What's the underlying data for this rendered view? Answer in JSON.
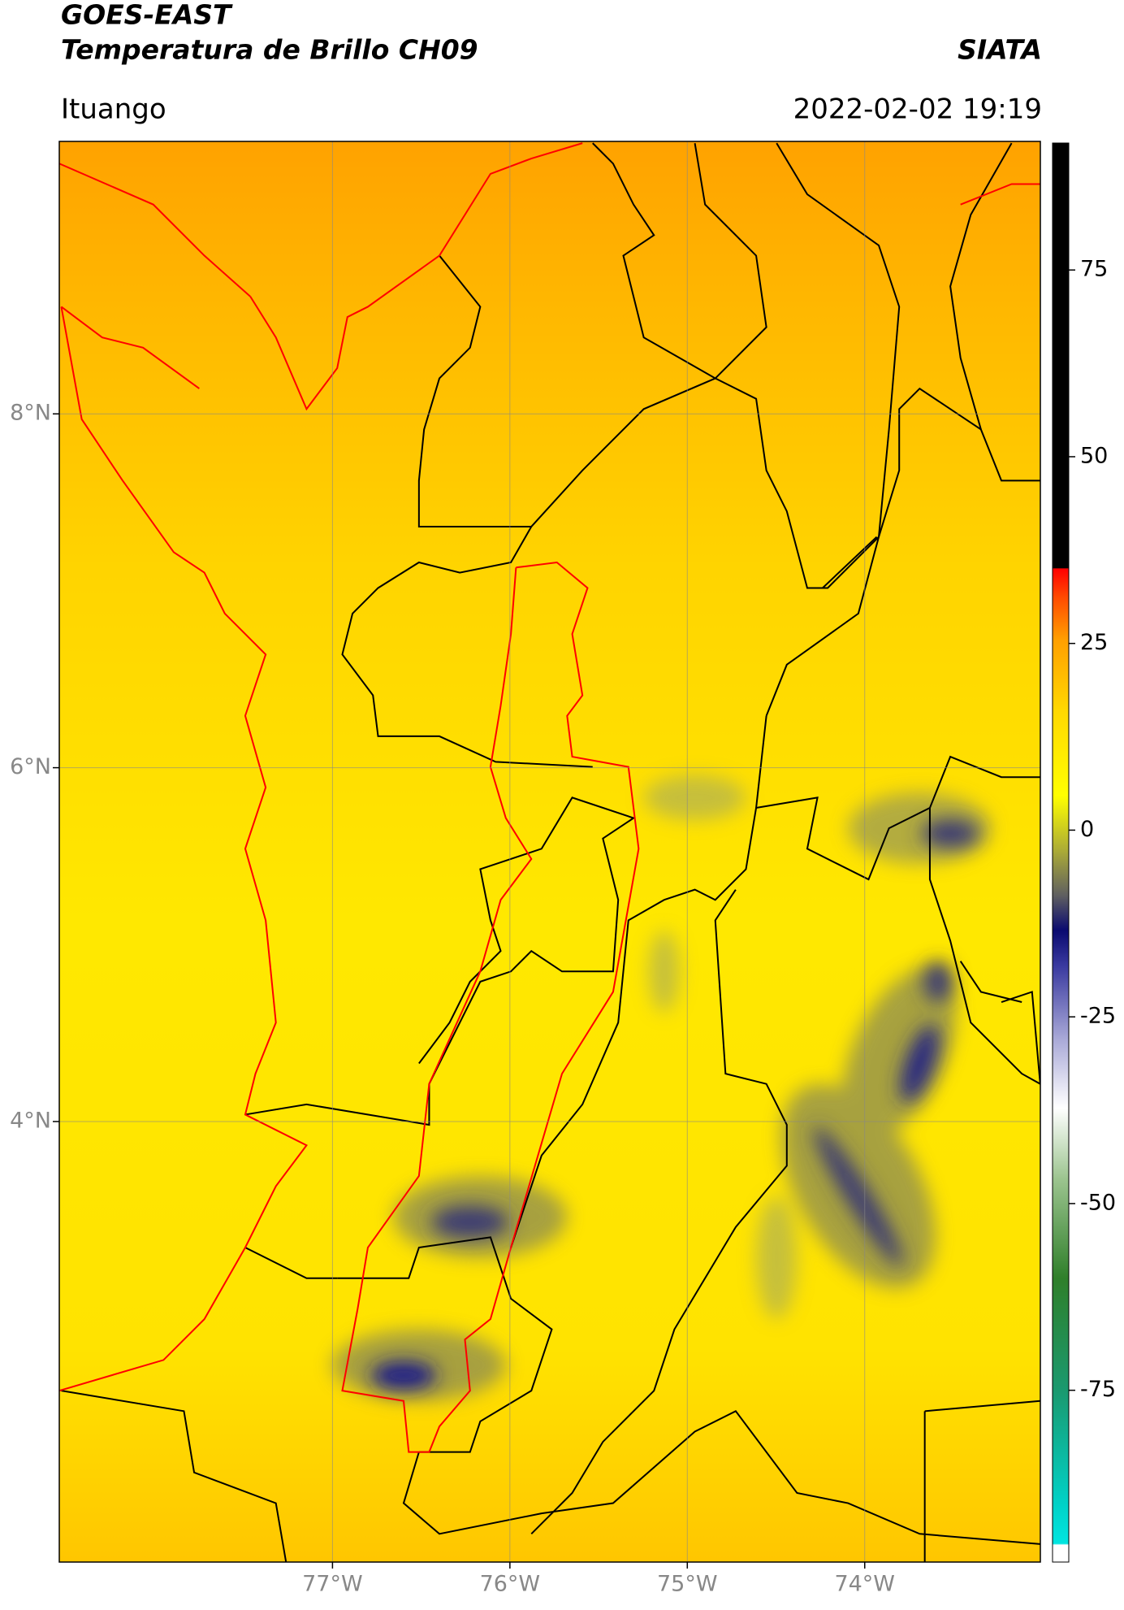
{
  "header": {
    "title": "GOES-EAST",
    "subtitle": "Temperatura de Brillo CH09",
    "source": "SIATA",
    "location": "Ituango",
    "datetime": "2022-02-02 19:19"
  },
  "map": {
    "lat_range": [
      1.51,
      9.54
    ],
    "lon_range": [
      -78.54,
      -73.01
    ],
    "lat_ticks": [
      {
        "value": 8,
        "label": "8°N"
      },
      {
        "value": 6,
        "label": "6°N"
      },
      {
        "value": 4,
        "label": "4°N"
      }
    ],
    "lon_ticks": [
      {
        "value": -77,
        "label": "77°W"
      },
      {
        "value": -76,
        "label": "76°W"
      },
      {
        "value": -75,
        "label": "75°W"
      },
      {
        "value": -74,
        "label": "74°W"
      }
    ]
  },
  "colorbar": {
    "range": [
      -98,
      92
    ],
    "ticks": [
      75,
      50,
      25,
      0,
      -25,
      -50,
      -75
    ]
  }
}
